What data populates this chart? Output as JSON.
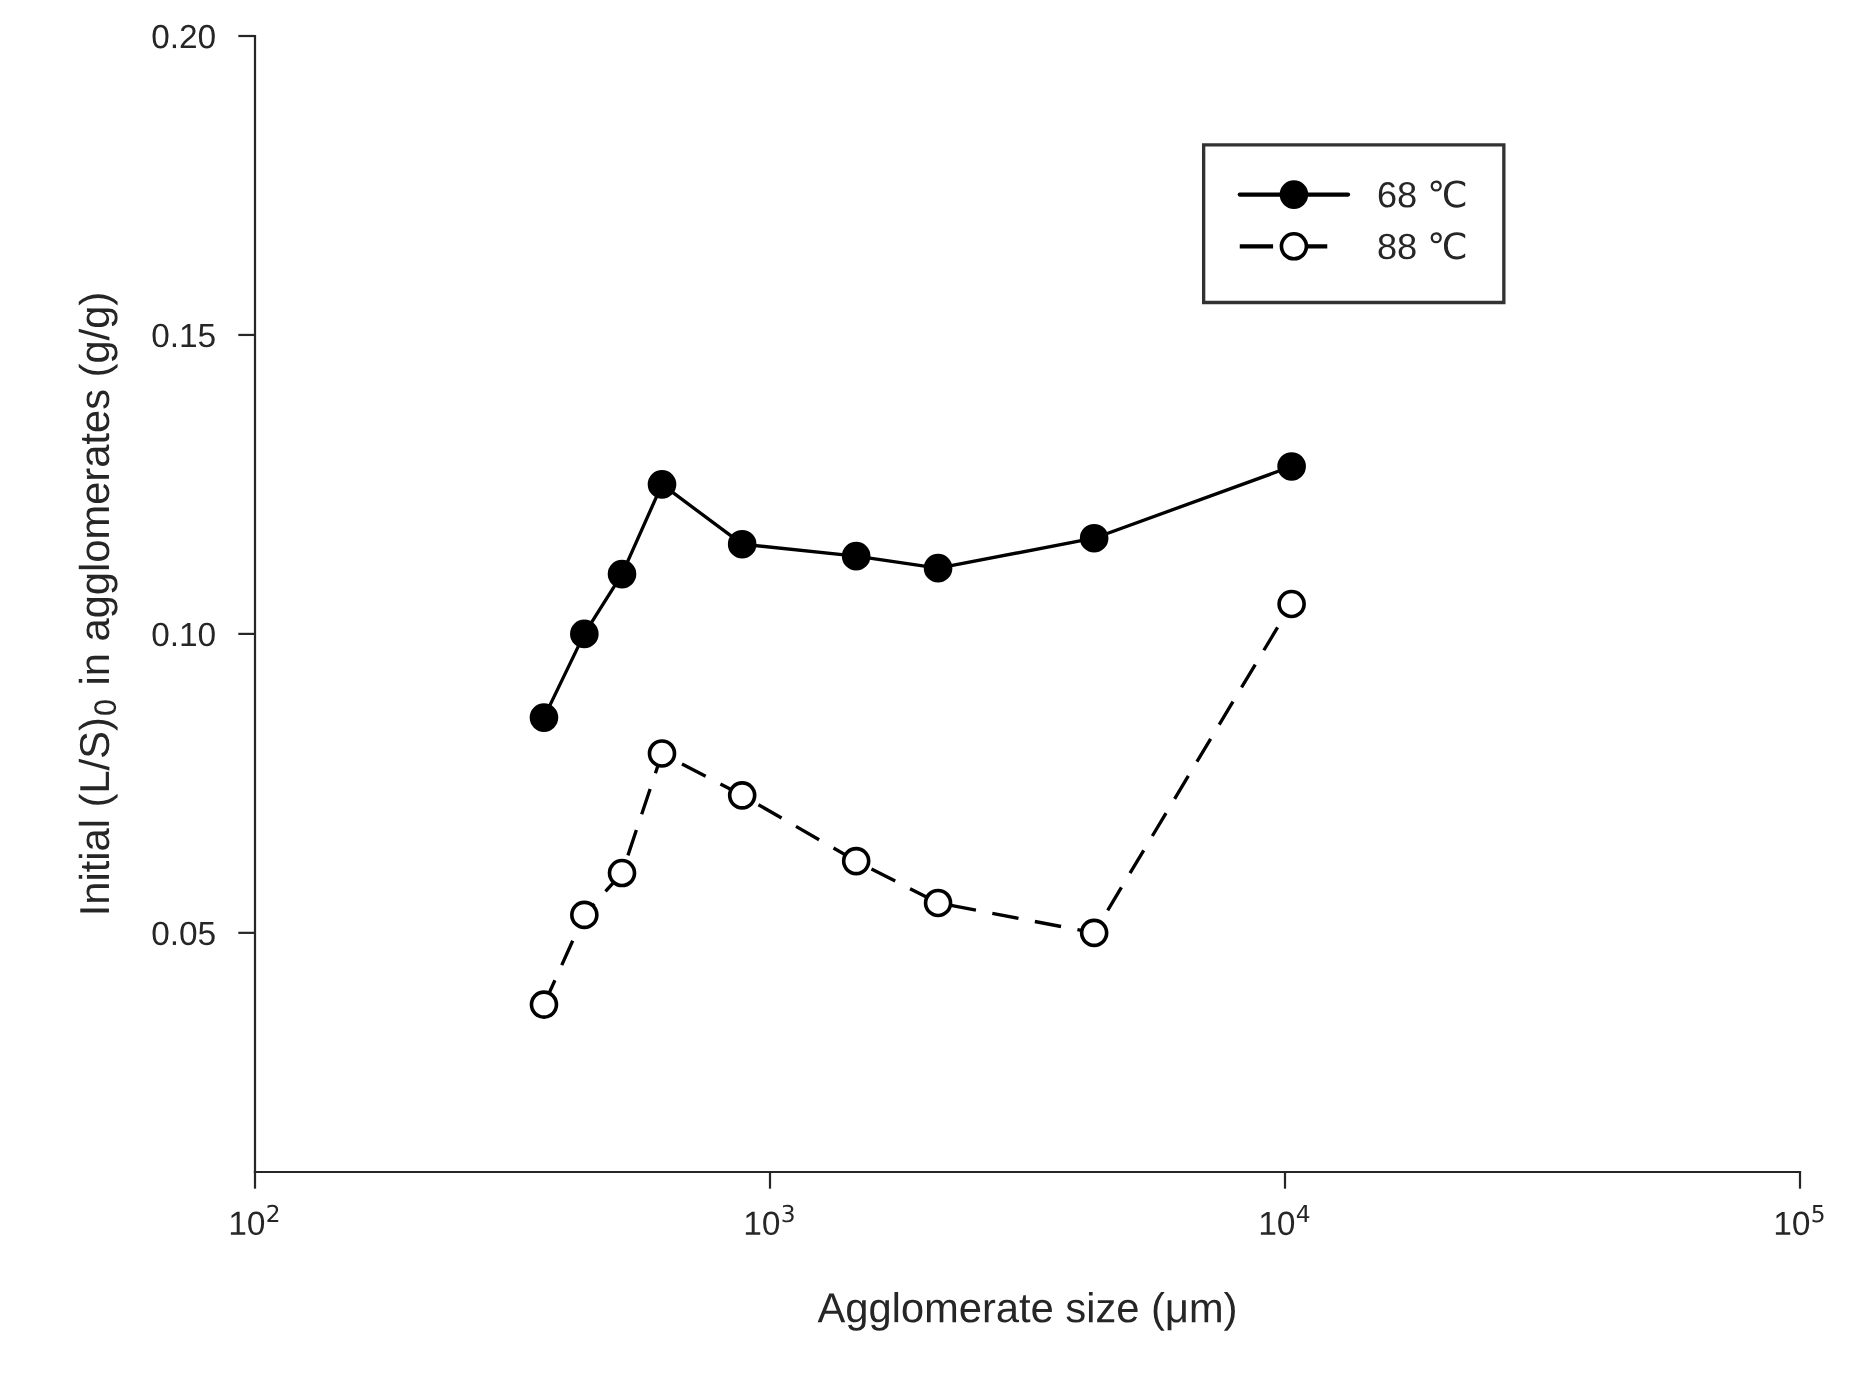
{
  "chart_data": {
    "type": "line",
    "xlabel": "Agglomerate size (μm)",
    "ylabel": "Initial (L/S)$_{0}$ in agglomerates (g/g)",
    "log": "x",
    "xlim": [
      100,
      100000
    ],
    "xticks": [
      {
        "value": 100,
        "label": "10$^{2}$"
      },
      {
        "value": 1000,
        "label": "10$^{3}$"
      },
      {
        "value": 10000,
        "label": "10$^{4}$"
      },
      {
        "value": 100000,
        "label": "10$^{5}$"
      }
    ],
    "ylim": [
      0.01,
      0.2
    ],
    "yticks": [
      {
        "value": 0.05,
        "label": "0.05"
      },
      {
        "value": 0.1,
        "label": "0.10"
      },
      {
        "value": 0.15,
        "label": "0.15"
      },
      {
        "value": 0.2,
        "label": "0.20"
      }
    ],
    "x": [
      364,
      436,
      516,
      617,
      883,
      1470,
      2120,
      4260,
      10300
    ],
    "series": [
      {
        "name": "68 ℃",
        "color": "#000000",
        "marker": "circle",
        "line_style": "solid",
        "values": [
          0.086,
          0.1,
          0.11,
          0.125,
          0.115,
          0.113,
          0.111,
          0.116,
          0.128
        ]
      },
      {
        "name": "88 ℃",
        "color": "#000000",
        "marker": "circle",
        "line_style": "dashed",
        "values": [
          0.038,
          0.053,
          0.06,
          0.08,
          0.073,
          0.062,
          0.055,
          0.05,
          0.105
        ]
      }
    ],
    "grid": false,
    "legend": "top right"
  }
}
